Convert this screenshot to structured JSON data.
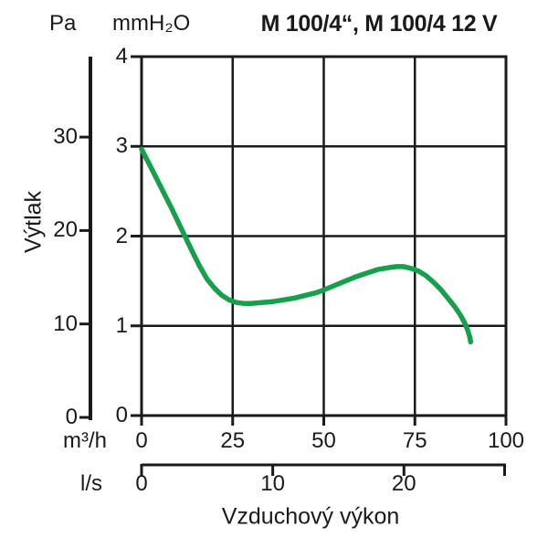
{
  "chart_data": {
    "type": "line",
    "title": "M 100/4“, M 100/4 12 V",
    "ylabel": "Výtlak",
    "xlabel": "Vzduchový výkon",
    "grid": true,
    "legend": "none",
    "x_axis_primary": {
      "unit": "m³/h",
      "range": [
        0,
        100
      ],
      "ticks": [
        0,
        25,
        50,
        75,
        100
      ]
    },
    "x_axis_secondary": {
      "unit": "l/s",
      "ticks": [
        0,
        10,
        20
      ],
      "conversion_to_primary": 3.6
    },
    "y_axis_primary": {
      "unit": "mmH₂O",
      "range": [
        0,
        4
      ],
      "ticks": [
        0,
        1,
        2,
        3,
        4
      ]
    },
    "y_axis_secondary": {
      "unit": "Pa",
      "ticks": [
        0,
        10,
        20,
        30
      ]
    },
    "series": [
      {
        "name": "M 100/4“, M 100/4 12 V",
        "color": "#17a04b",
        "points": [
          [
            0,
            2.97
          ],
          [
            2,
            2.81
          ],
          [
            4,
            2.65
          ],
          [
            6,
            2.49
          ],
          [
            8,
            2.33
          ],
          [
            10,
            2.16
          ],
          [
            12,
            1.99
          ],
          [
            14,
            1.82
          ],
          [
            16,
            1.66
          ],
          [
            18,
            1.52
          ],
          [
            20,
            1.42
          ],
          [
            22,
            1.34
          ],
          [
            24,
            1.29
          ],
          [
            26,
            1.26
          ],
          [
            28,
            1.25
          ],
          [
            30,
            1.25
          ],
          [
            33,
            1.26
          ],
          [
            36,
            1.27
          ],
          [
            39,
            1.29
          ],
          [
            42,
            1.31
          ],
          [
            45,
            1.34
          ],
          [
            48,
            1.37
          ],
          [
            50,
            1.4
          ],
          [
            53,
            1.45
          ],
          [
            56,
            1.5
          ],
          [
            59,
            1.55
          ],
          [
            62,
            1.59
          ],
          [
            65,
            1.63
          ],
          [
            68,
            1.65
          ],
          [
            70,
            1.66
          ],
          [
            72,
            1.66
          ],
          [
            74,
            1.64
          ],
          [
            76,
            1.61
          ],
          [
            78,
            1.56
          ],
          [
            80,
            1.49
          ],
          [
            82,
            1.41
          ],
          [
            84,
            1.31
          ],
          [
            86,
            1.21
          ],
          [
            87.5,
            1.12
          ],
          [
            88.7,
            1.03
          ],
          [
            89.5,
            0.95
          ],
          [
            90.1,
            0.87
          ],
          [
            90.3,
            0.82
          ]
        ]
      }
    ]
  },
  "colors": {
    "curve": "#17a04b",
    "axis": "#1a1a1a",
    "background": "#ffffff"
  }
}
